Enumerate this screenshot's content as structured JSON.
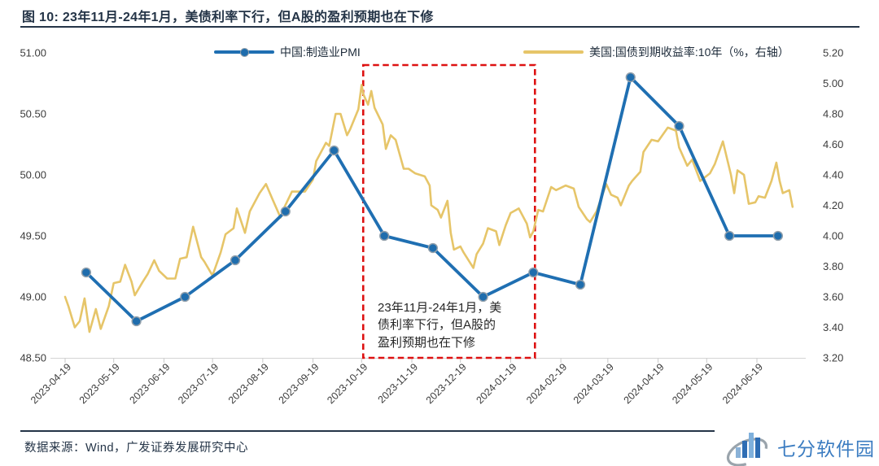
{
  "title": "图 10: 23年11月-24年1月，美债利率下行，但A股的盈利预期也在下修",
  "source": "数据来源：Wind，广发证券发展研究中心",
  "watermark": {
    "text": "七分软件园"
  },
  "colors": {
    "pmi_blue": "#1f6fb2",
    "yield_gold": "#e6c569",
    "highlight_red": "#dd1111",
    "title_navy": "#243447",
    "logo_blue": "#3b7cc1",
    "axis_text": "#3c3c3c"
  },
  "legend": [
    {
      "label": "中国:制造业PMI",
      "color": "#1f6fb2",
      "style": "line-with-marker"
    },
    {
      "label": "美国:国债到期收益率:10年（%，右轴）",
      "color": "#e6c569",
      "style": "line"
    }
  ],
  "annotation": {
    "lines": [
      "23年11月-24年1月，美",
      "债利率下行，但A股的",
      "盈利预期也在下修"
    ],
    "box_from": "2023-10-20",
    "box_to": "2024-02-03"
  },
  "chart_data": {
    "type": "line",
    "title": "图 10: 23年11月-24年1月，美债利率下行，但A股的盈利预期也在下修",
    "left_axis": {
      "min": 48.5,
      "max": 51.0,
      "ticks": [
        51.0,
        50.5,
        50.0,
        49.5,
        49.0,
        48.5
      ]
    },
    "right_axis": {
      "min": 3.2,
      "max": 5.2,
      "ticks": [
        5.2,
        5.0,
        4.8,
        4.6,
        4.4,
        4.2,
        4.0,
        3.8,
        3.6,
        3.4,
        3.2
      ]
    },
    "x_axis": {
      "start": "2023-04-19",
      "tick_labels": [
        "2023-04-19",
        "2023-05-19",
        "2023-06-19",
        "2023-07-19",
        "2023-08-19",
        "2023-09-19",
        "2023-10-19",
        "2023-11-19",
        "2023-12-19",
        "2024-01-19",
        "2024-02-19",
        "2024-03-19",
        "2024-04-19",
        "2024-05-19",
        "2024-06-19"
      ]
    },
    "grid": false,
    "legend_position": "top",
    "series": [
      {
        "name": "中国:制造业PMI",
        "axis": "left",
        "color": "#1f6fb2",
        "marker": "circle",
        "x": [
          "2023-04-30",
          "2023-05-31",
          "2023-06-30",
          "2023-07-31",
          "2023-08-31",
          "2023-09-30",
          "2023-10-31",
          "2023-11-30",
          "2023-12-31",
          "2024-01-31",
          "2024-02-29",
          "2024-03-31",
          "2024-04-30",
          "2024-05-31",
          "2024-06-30"
        ],
        "values": [
          49.2,
          48.8,
          49.0,
          49.3,
          49.7,
          50.2,
          49.5,
          49.4,
          49.0,
          49.2,
          49.1,
          50.8,
          50.4,
          49.5,
          49.5
        ]
      },
      {
        "name": "美国:国债到期收益率:10年（%，右轴）",
        "axis": "right",
        "color": "#e6c569",
        "marker": "none",
        "points": [
          [
            "2023-04-19",
            3.6
          ],
          [
            "2023-04-21",
            3.54
          ],
          [
            "2023-04-25",
            3.4
          ],
          [
            "2023-04-28",
            3.44
          ],
          [
            "2023-05-01",
            3.59
          ],
          [
            "2023-05-04",
            3.37
          ],
          [
            "2023-05-08",
            3.52
          ],
          [
            "2023-05-11",
            3.39
          ],
          [
            "2023-05-16",
            3.54
          ],
          [
            "2023-05-19",
            3.69
          ],
          [
            "2023-05-23",
            3.7
          ],
          [
            "2023-05-26",
            3.81
          ],
          [
            "2023-05-30",
            3.7
          ],
          [
            "2023-06-01",
            3.61
          ],
          [
            "2023-06-06",
            3.7
          ],
          [
            "2023-06-09",
            3.75
          ],
          [
            "2023-06-13",
            3.84
          ],
          [
            "2023-06-16",
            3.77
          ],
          [
            "2023-06-21",
            3.72
          ],
          [
            "2023-06-26",
            3.72
          ],
          [
            "2023-06-29",
            3.85
          ],
          [
            "2023-07-03",
            3.86
          ],
          [
            "2023-07-07",
            4.06
          ],
          [
            "2023-07-12",
            3.86
          ],
          [
            "2023-07-14",
            3.83
          ],
          [
            "2023-07-19",
            3.74
          ],
          [
            "2023-07-24",
            3.89
          ],
          [
            "2023-07-27",
            4.01
          ],
          [
            "2023-08-01",
            4.05
          ],
          [
            "2023-08-03",
            4.18
          ],
          [
            "2023-08-08",
            4.02
          ],
          [
            "2023-08-11",
            4.16
          ],
          [
            "2023-08-17",
            4.28
          ],
          [
            "2023-08-21",
            4.34
          ],
          [
            "2023-08-25",
            4.24
          ],
          [
            "2023-08-30",
            4.12
          ],
          [
            "2023-09-01",
            4.18
          ],
          [
            "2023-09-06",
            4.29
          ],
          [
            "2023-09-11",
            4.29
          ],
          [
            "2023-09-14",
            4.29
          ],
          [
            "2023-09-19",
            4.37
          ],
          [
            "2023-09-21",
            4.49
          ],
          [
            "2023-09-27",
            4.61
          ],
          [
            "2023-09-29",
            4.59
          ],
          [
            "2023-10-03",
            4.8
          ],
          [
            "2023-10-06",
            4.8
          ],
          [
            "2023-10-10",
            4.66
          ],
          [
            "2023-10-12",
            4.7
          ],
          [
            "2023-10-17",
            4.83
          ],
          [
            "2023-10-19",
            4.99
          ],
          [
            "2023-10-20",
            4.93
          ],
          [
            "2023-10-23",
            4.86
          ],
          [
            "2023-10-25",
            4.95
          ],
          [
            "2023-10-27",
            4.84
          ],
          [
            "2023-11-01",
            4.73
          ],
          [
            "2023-11-03",
            4.57
          ],
          [
            "2023-11-06",
            4.66
          ],
          [
            "2023-11-09",
            4.63
          ],
          [
            "2023-11-14",
            4.44
          ],
          [
            "2023-11-17",
            4.44
          ],
          [
            "2023-11-21",
            4.41
          ],
          [
            "2023-11-27",
            4.39
          ],
          [
            "2023-11-30",
            4.33
          ],
          [
            "2023-12-01",
            4.2
          ],
          [
            "2023-12-05",
            4.17
          ],
          [
            "2023-12-07",
            4.12
          ],
          [
            "2023-12-11",
            4.23
          ],
          [
            "2023-12-13",
            4.02
          ],
          [
            "2023-12-15",
            3.91
          ],
          [
            "2023-12-19",
            3.93
          ],
          [
            "2023-12-21",
            3.89
          ],
          [
            "2023-12-27",
            3.79
          ],
          [
            "2023-12-29",
            3.88
          ],
          [
            "2024-01-02",
            3.95
          ],
          [
            "2024-01-05",
            4.05
          ],
          [
            "2024-01-10",
            4.03
          ],
          [
            "2024-01-12",
            3.94
          ],
          [
            "2024-01-16",
            4.07
          ],
          [
            "2024-01-19",
            4.15
          ],
          [
            "2024-01-24",
            4.18
          ],
          [
            "2024-01-29",
            4.08
          ],
          [
            "2024-01-31",
            3.99
          ],
          [
            "2024-02-02",
            4.03
          ],
          [
            "2024-02-05",
            4.17
          ],
          [
            "2024-02-08",
            4.16
          ],
          [
            "2024-02-13",
            4.32
          ],
          [
            "2024-02-16",
            4.3
          ],
          [
            "2024-02-22",
            4.33
          ],
          [
            "2024-02-27",
            4.31
          ],
          [
            "2024-03-01",
            4.19
          ],
          [
            "2024-03-06",
            4.11
          ],
          [
            "2024-03-08",
            4.09
          ],
          [
            "2024-03-12",
            4.16
          ],
          [
            "2024-03-18",
            4.34
          ],
          [
            "2024-03-21",
            4.27
          ],
          [
            "2024-03-25",
            4.25
          ],
          [
            "2024-03-27",
            4.2
          ],
          [
            "2024-04-01",
            4.33
          ],
          [
            "2024-04-03",
            4.36
          ],
          [
            "2024-04-08",
            4.42
          ],
          [
            "2024-04-10",
            4.55
          ],
          [
            "2024-04-15",
            4.63
          ],
          [
            "2024-04-19",
            4.62
          ],
          [
            "2024-04-25",
            4.71
          ],
          [
            "2024-04-30",
            4.69
          ],
          [
            "2024-05-02",
            4.58
          ],
          [
            "2024-05-07",
            4.46
          ],
          [
            "2024-05-10",
            4.5
          ],
          [
            "2024-05-15",
            4.36
          ],
          [
            "2024-05-21",
            4.41
          ],
          [
            "2024-05-24",
            4.47
          ],
          [
            "2024-05-29",
            4.62
          ],
          [
            "2024-06-03",
            4.4
          ],
          [
            "2024-06-05",
            4.28
          ],
          [
            "2024-06-07",
            4.43
          ],
          [
            "2024-06-11",
            4.4
          ],
          [
            "2024-06-14",
            4.21
          ],
          [
            "2024-06-18",
            4.22
          ],
          [
            "2024-06-20",
            4.26
          ],
          [
            "2024-06-24",
            4.25
          ],
          [
            "2024-06-28",
            4.36
          ],
          [
            "2024-07-01",
            4.48
          ],
          [
            "2024-07-03",
            4.36
          ],
          [
            "2024-07-05",
            4.28
          ],
          [
            "2024-07-09",
            4.3
          ],
          [
            "2024-07-11",
            4.19
          ]
        ]
      }
    ]
  }
}
